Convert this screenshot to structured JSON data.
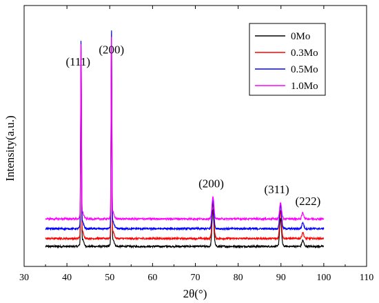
{
  "chart_data": {
    "type": "line",
    "xlabel": "2θ(°)",
    "ylabel": "Intensity(a.u.)",
    "xlim": [
      30,
      110
    ],
    "x_ticks": [
      "30",
      "40",
      "50",
      "60",
      "70",
      "80",
      "90",
      "100",
      "110"
    ],
    "y_ticks": [],
    "grid": false,
    "legend_position": "top-right",
    "x_range_of_data": [
      35,
      100
    ],
    "series": [
      {
        "name": "0Mo",
        "color": "#000000",
        "baseline": 0,
        "peaks": [
          {
            "x": 43.3,
            "y": 95
          },
          {
            "x": 50.4,
            "y": 100
          },
          {
            "x": 74.1,
            "y": 18
          },
          {
            "x": 89.9,
            "y": 14
          },
          {
            "x": 95.1,
            "y": 3
          }
        ]
      },
      {
        "name": "0.3Mo",
        "color": "#ff0000",
        "baseline": 4,
        "peaks": [
          {
            "x": 43.3,
            "y": 95
          },
          {
            "x": 50.4,
            "y": 100
          },
          {
            "x": 74.1,
            "y": 18
          },
          {
            "x": 89.9,
            "y": 14
          },
          {
            "x": 95.1,
            "y": 3
          }
        ]
      },
      {
        "name": "0.5Mo",
        "color": "#0000ff",
        "baseline": 9,
        "peaks": [
          {
            "x": 43.3,
            "y": 95
          },
          {
            "x": 50.4,
            "y": 100
          },
          {
            "x": 74.1,
            "y": 14
          },
          {
            "x": 89.9,
            "y": 12
          },
          {
            "x": 95.1,
            "y": 3
          }
        ]
      },
      {
        "name": "1.0Mo",
        "color": "#ff00ff",
        "baseline": 14,
        "peaks": [
          {
            "x": 43.3,
            "y": 88
          },
          {
            "x": 50.4,
            "y": 92
          },
          {
            "x": 74.1,
            "y": 11
          },
          {
            "x": 89.9,
            "y": 8
          },
          {
            "x": 95.1,
            "y": 3
          }
        ]
      }
    ],
    "annotations": [
      {
        "text": "(111)",
        "x": 42.6,
        "y": 92
      },
      {
        "text": "(200)",
        "x": 50.4,
        "y": 98
      },
      {
        "text": "(200)",
        "x": 73.7,
        "y": 30
      },
      {
        "text": "(311)",
        "x": 89.0,
        "y": 27
      },
      {
        "text": "(222)",
        "x": 96.3,
        "y": 21
      }
    ]
  }
}
